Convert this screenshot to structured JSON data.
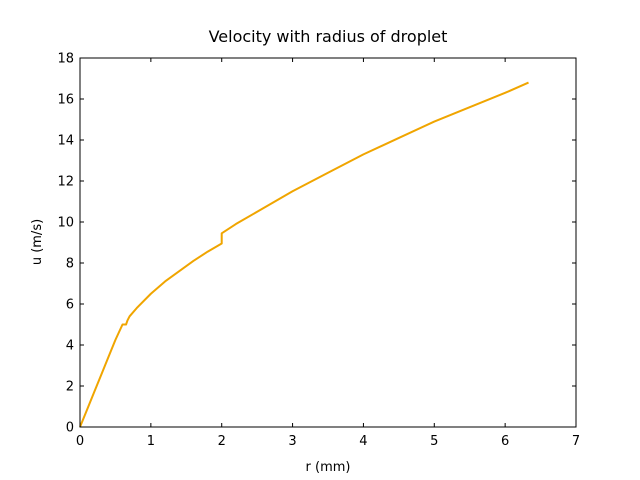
{
  "chart_data": {
    "type": "line",
    "title": "Velocity with radius of droplet",
    "xlabel": "r (mm)",
    "ylabel": "u (m/s)",
    "xlim": [
      0,
      7
    ],
    "ylim": [
      0,
      18
    ],
    "xticks": [
      "0",
      "1",
      "2",
      "3",
      "4",
      "5",
      "6",
      "7"
    ],
    "yticks": [
      "0",
      "2",
      "4",
      "6",
      "8",
      "10",
      "12",
      "14",
      "16",
      "18"
    ],
    "grid": false,
    "legend": "none",
    "series": [
      {
        "color": "#f0a500",
        "x": [
          0,
          0.1,
          0.2,
          0.3,
          0.4,
          0.5,
          0.6,
          0.6,
          0.65,
          0.67,
          0.7,
          0.8,
          1.0,
          1.2,
          1.4,
          1.6,
          1.8,
          2.0,
          2.0,
          2.2,
          2.5,
          3.0,
          3.5,
          4.0,
          4.5,
          5.0,
          5.5,
          6.0,
          6.33
        ],
        "y": [
          0,
          0.85,
          1.7,
          2.55,
          3.4,
          4.25,
          5.0,
          5.0,
          5.0,
          5.2,
          5.4,
          5.8,
          6.5,
          7.1,
          7.6,
          8.1,
          8.55,
          8.95,
          9.45,
          9.9,
          10.5,
          11.5,
          12.4,
          13.3,
          14.1,
          14.9,
          15.6,
          16.3,
          16.8
        ]
      }
    ]
  }
}
